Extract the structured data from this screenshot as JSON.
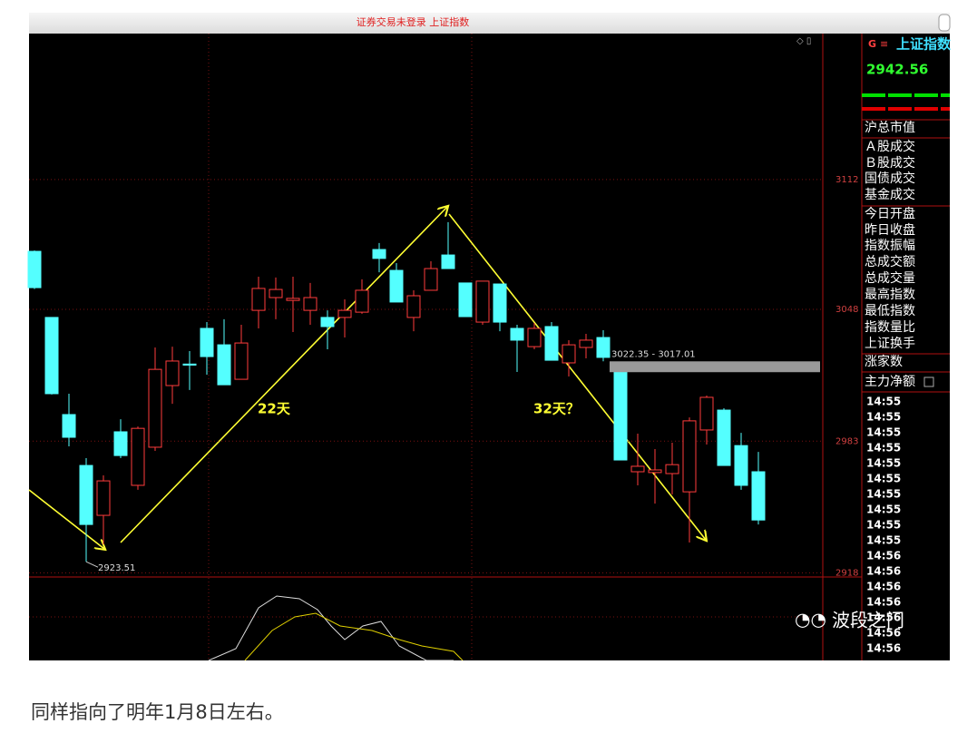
{
  "window_title": "证券交易未登录 上证指数",
  "chart_data": {
    "type": "candlestick",
    "up_color": "#ff3c3c",
    "down_color": "#54ffff",
    "ylim": [
      2916,
      3184
    ],
    "yticks": [
      3112,
      3048,
      2983,
      2918
    ],
    "grid": true,
    "candles": {
      "open": [
        3076.6,
        3044,
        2996.1,
        2971,
        2946.4,
        2987.6,
        2961.2,
        2980,
        3010.4,
        3021,
        3038.6,
        3030.5,
        3013.5,
        3047.5,
        3053.8,
        3052.4,
        3047.5,
        3044,
        3044,
        3046.6,
        3077.5,
        3067.2,
        3044,
        3057.4,
        3074.8,
        3061,
        3041.7,
        3060.5,
        3038.6,
        3029.6,
        3039.5,
        3021.6,
        3029.2,
        3034.1,
        3017.01,
        2967.9,
        2967.5,
        2967,
        2958,
        2988.5,
        2998.3,
        2980.8,
        2967.9
      ],
      "high": [
        3077,
        3044,
        3006.4,
        2974.6,
        2966.1,
        2993.8,
        2990.2,
        3029.2,
        3029.6,
        3027.4,
        3041.7,
        3043.1,
        3040.4,
        3064.1,
        3063.7,
        3064.1,
        3061,
        3047.5,
        3052.9,
        3062.8,
        3080.7,
        3070.8,
        3057.4,
        3071.7,
        3091,
        3061,
        3061.9,
        3060.5,
        3040.4,
        3041.3,
        3041.7,
        3032.8,
        3035.9,
        3037.7,
        3017.01,
        2986.7,
        2979.1,
        2982.2,
        2994.7,
        3005.5,
        2999.2,
        2987.1,
        2977.7
      ],
      "low": [
        3058,
        3006,
        2980.4,
        2923.51,
        2932,
        2974.6,
        2959,
        2978.2,
        3001.4,
        3008.2,
        3015.8,
        3010.8,
        3013.5,
        3038.6,
        3043.1,
        3036.8,
        3040.4,
        3028.3,
        3034.1,
        3045.8,
        3066.3,
        3051.6,
        3037.2,
        3057.4,
        3068.1,
        3044.4,
        3040.4,
        3037.2,
        3017.1,
        3028.3,
        3022.9,
        3014.9,
        3023.8,
        3022.35,
        2973.7,
        2961.2,
        2952.2,
        2956.7,
        2933,
        2981.3,
        2971,
        2959,
        2941.9
      ],
      "close": [
        3058.7,
        3006.4,
        2984.9,
        2941.9,
        2963.4,
        2975.9,
        2989.3,
        3018.4,
        3022.5,
        3020.5,
        3024.7,
        3010.8,
        3031.4,
        3058.3,
        3057.8,
        3053.4,
        3053.8,
        3039.5,
        3047.5,
        3057.4,
        3073.1,
        3051.6,
        3054.7,
        3068.1,
        3068.1,
        3044.4,
        3061.9,
        3041.7,
        3032.8,
        3038.6,
        3022.9,
        3030.5,
        3032.8,
        3024.3,
        2973.7,
        2970.6,
        2968.8,
        2971.4,
        2993,
        3004.6,
        2971,
        2961.2,
        2944.1
      ]
    },
    "low_marker": 2923.51,
    "gap": {
      "label": "3022.35 - 3017.01",
      "high": 3022.35,
      "low": 3017.01
    },
    "annotations": [
      "22天",
      "32天？"
    ]
  },
  "panel": {
    "code": "G",
    "name": "上证指数",
    "price": 2942.56,
    "labels": [
      "沪总市值",
      "Ａ股成交",
      "Ｂ股成交",
      "国债成交",
      "基金成交",
      "今日开盘",
      "昨日收盘",
      "指数振幅",
      "总成交额",
      "总成交量",
      "最高指数",
      "最低指数",
      "指数量比",
      "上证换手",
      "涨家数",
      "主力净额"
    ],
    "times": [
      "14:55",
      "14:55",
      "14:55",
      "14:55",
      "14:55",
      "14:55",
      "14:55",
      "14:55",
      "14:55",
      "14:55",
      "14:56",
      "14:56",
      "14:56",
      "14:56",
      "14:56",
      "14:56",
      "14:56"
    ]
  },
  "watermark": "波段之门",
  "caption": "同样指向了明年1月8日左右。"
}
